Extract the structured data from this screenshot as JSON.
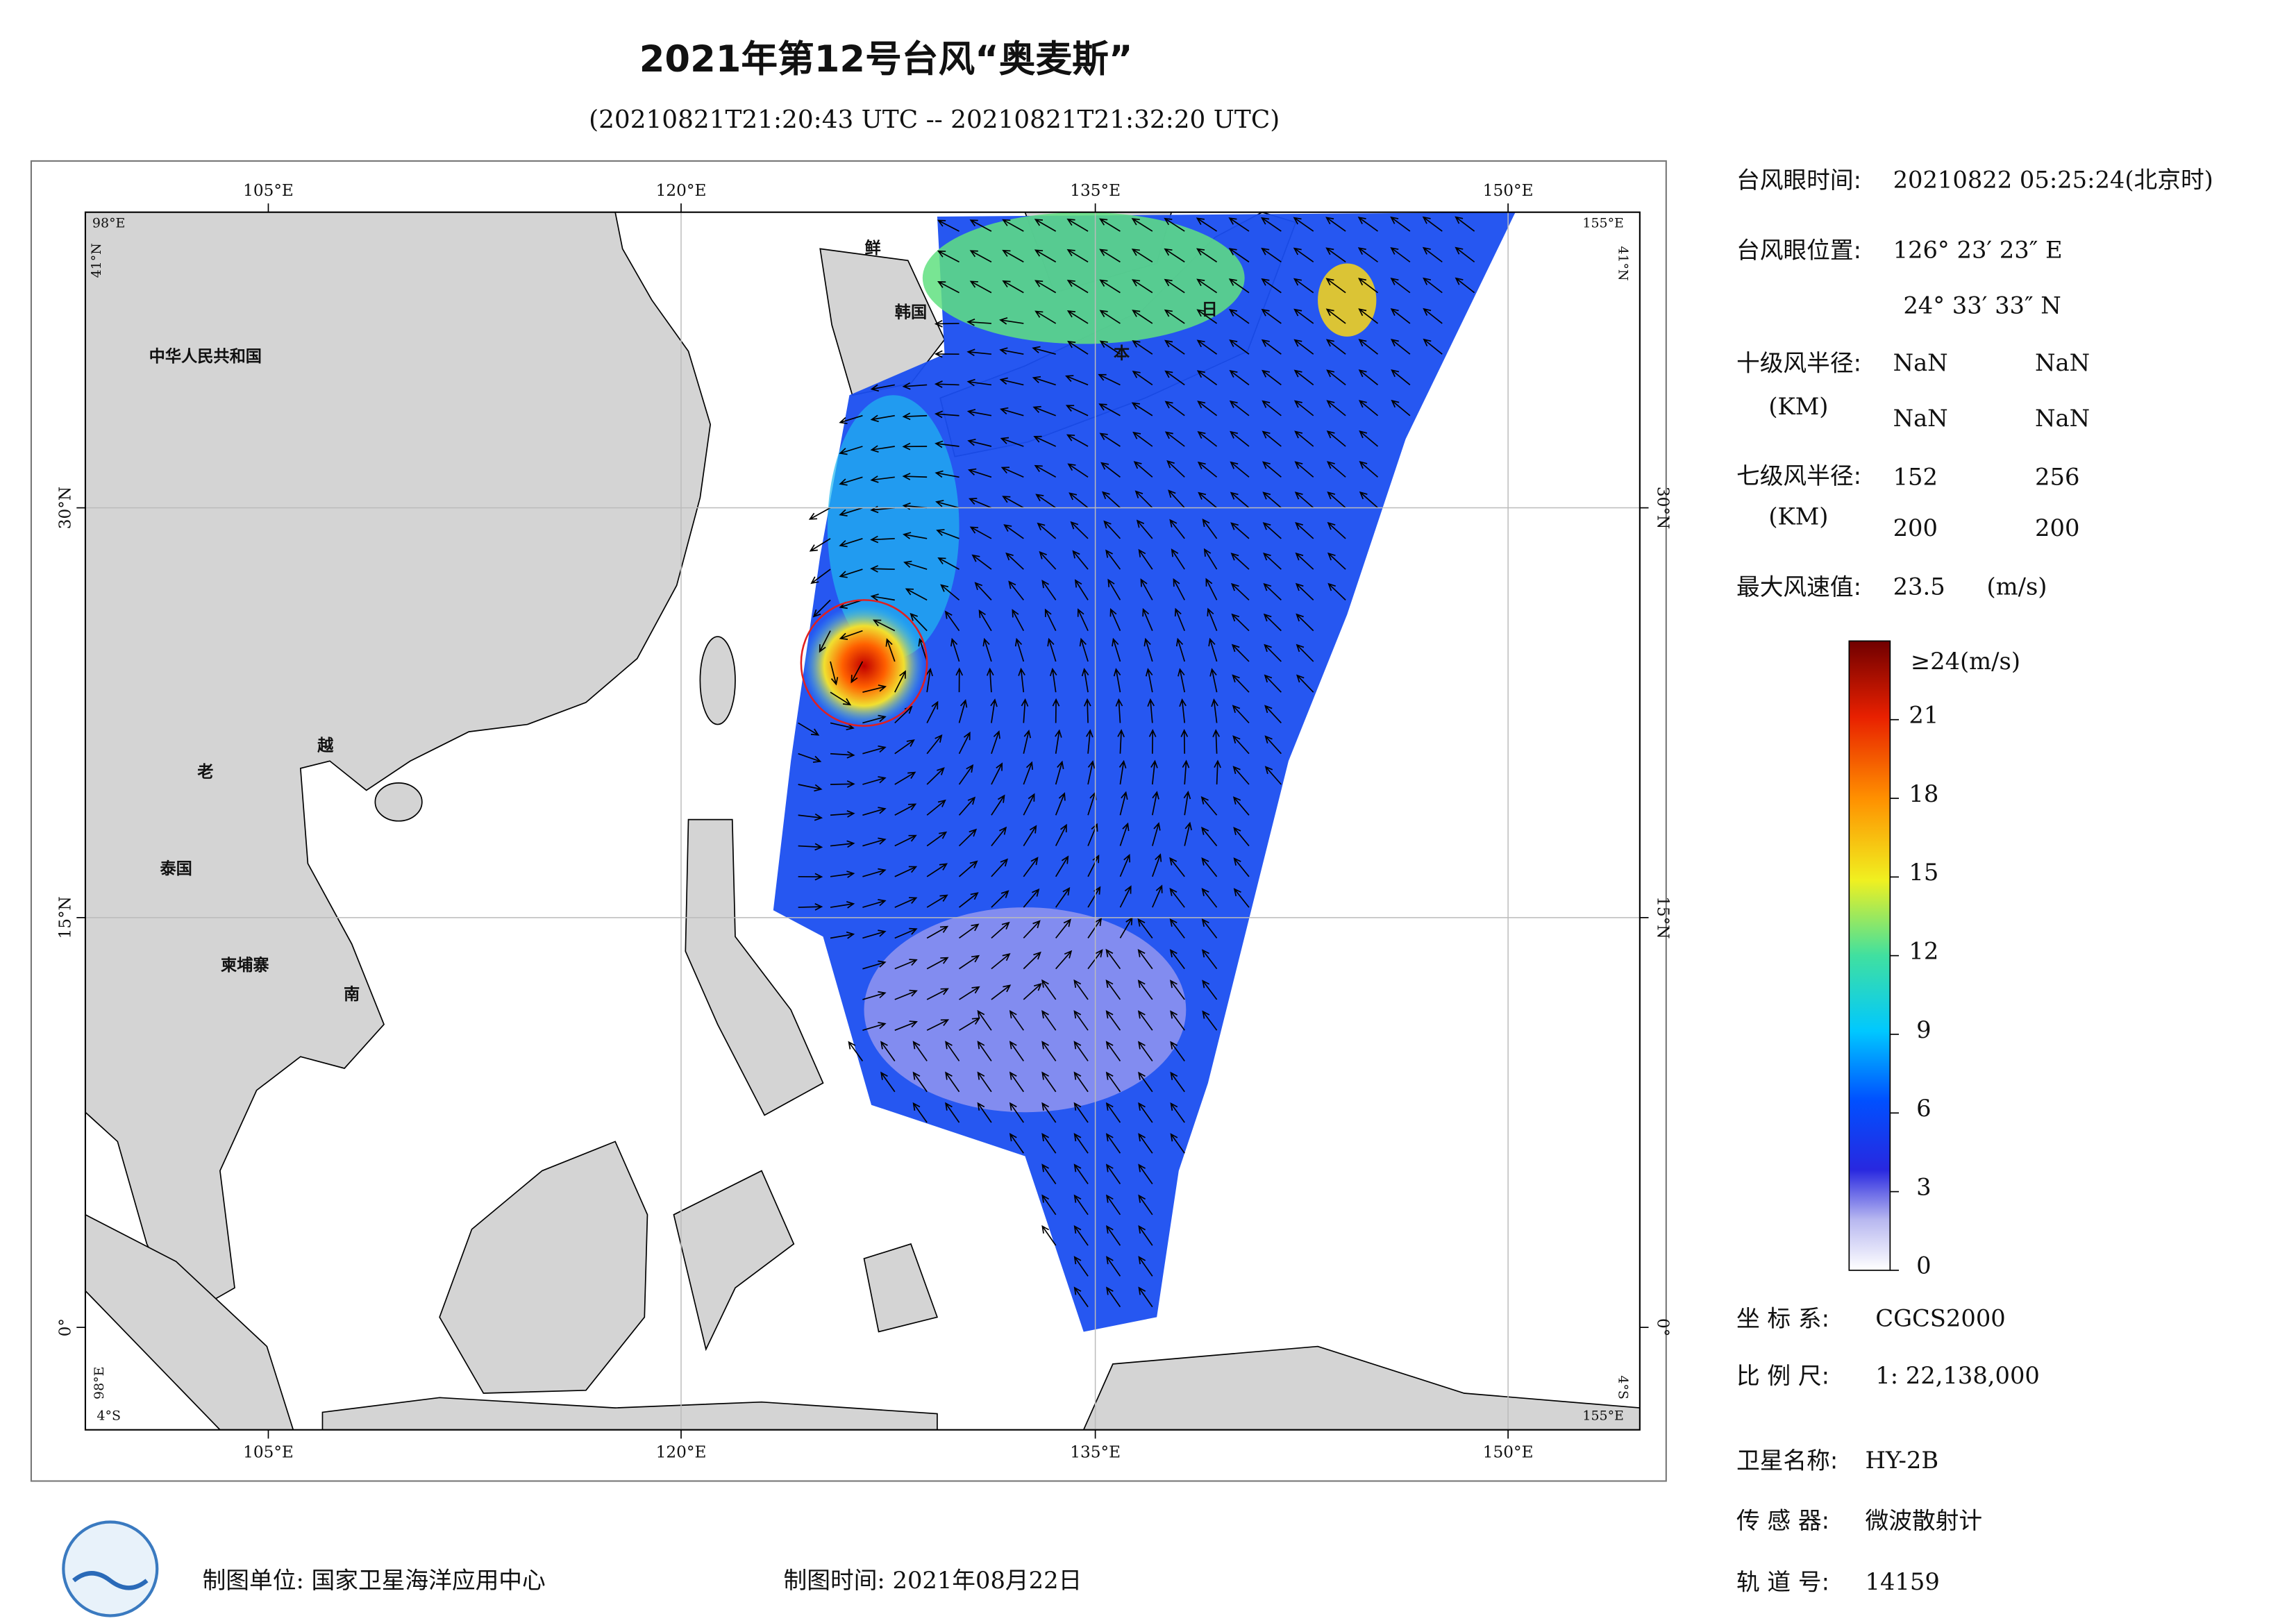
{
  "title": "2021年第12号台风“奥麦斯”",
  "subtitle": "(20210821T21:20:43 UTC -- 20210821T21:32:20 UTC)",
  "map": {
    "lon_labels": [
      "105°E",
      "120°E",
      "135°E",
      "150°E"
    ],
    "lat_labels": [
      "0°",
      "15°N",
      "30°N"
    ],
    "corner_labels": {
      "top_left_lon": "98°E",
      "top_left_lat": "41°N",
      "top_right_lon": "155°E",
      "top_right_lat": "41°N",
      "bottom_left_lon": "98°E",
      "bottom_left_lat": "4°S",
      "bottom_right_lon": "155°E",
      "bottom_right_lat": "4°S"
    },
    "place_labels": [
      "中华人民共和国",
      "老",
      "越",
      "泰国",
      "柬埔寨",
      "南",
      "鲜",
      "韩国",
      "日",
      "本"
    ]
  },
  "info": {
    "eye_time_label": "台风眼时间:",
    "eye_time": "20210822 05:25:24(北京时)",
    "eye_pos_label": "台风眼位置:",
    "eye_lon": "126° 23′ 23″ E",
    "eye_lat": "24° 33′ 33″ N",
    "r10_label": "十级风半径:",
    "km_label": "(KM)",
    "r10": [
      "NaN",
      "NaN",
      "NaN",
      "NaN"
    ],
    "r7_label": "七级风半径:",
    "r7": [
      152,
      256,
      200,
      200
    ],
    "max_wind_label": "最大风速值:",
    "max_wind": 23.5,
    "max_wind_unit": "(m/s)",
    "crs_label": "坐 标 系:",
    "crs": "CGCS2000",
    "scale_label": "比 例 尺:",
    "scale": "1: 22,138,000",
    "satellite_label": "卫星名称:",
    "satellite": "HY-2B",
    "sensor_label": "传 感 器:",
    "sensor": "微波散射计",
    "orbit_label": "轨 道 号:",
    "orbit": "14159"
  },
  "colorbar": {
    "top_label": "≥24(m/s)",
    "ticks": [
      0,
      3,
      6,
      9,
      12,
      15,
      18,
      21
    ],
    "range": [
      0,
      24
    ]
  },
  "footer": {
    "unit": "制图单位: 国家卫星海洋应用中心",
    "date": "制图时间: 2021年08月22日"
  }
}
